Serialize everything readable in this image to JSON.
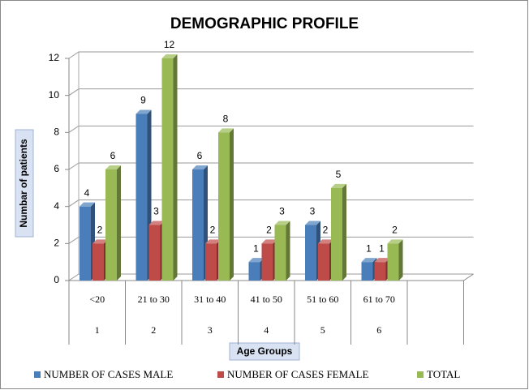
{
  "chart_data": {
    "type": "bar",
    "title": "DEMOGRAPHIC PROFILE",
    "y_label": "Numbar of patients",
    "x_label": "Age Groups",
    "categories": [
      "<20",
      "21 to 30",
      "31 to 40",
      "41 to 50",
      "51 to 60",
      "61 to 70",
      null
    ],
    "category_numbers": [
      "1",
      "2",
      "3",
      "4",
      "5",
      "6",
      null
    ],
    "series": [
      {
        "name": "NUMBER OF CASES  MALE",
        "color": "#4a7ebb",
        "values": [
          4,
          9,
          6,
          1,
          3,
          1,
          null
        ]
      },
      {
        "name": "NUMBER OF CASES  FEMALE",
        "color": "#be4b48",
        "values": [
          2,
          3,
          2,
          2,
          2,
          1,
          null
        ]
      },
      {
        "name": "TOTAL",
        "color": "#98b954",
        "values": [
          6,
          12,
          8,
          3,
          5,
          2,
          null
        ]
      }
    ],
    "ylim": [
      0,
      12
    ],
    "yticks": [
      0,
      2,
      4,
      6,
      8,
      10,
      12
    ],
    "grid": true,
    "legend": "bottom"
  }
}
